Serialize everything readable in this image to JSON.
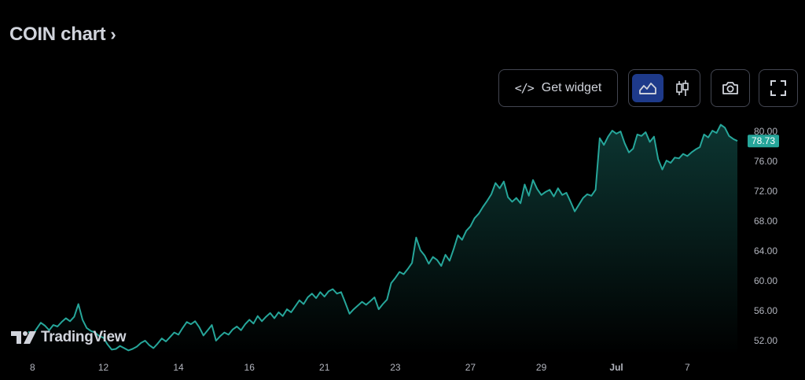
{
  "header": {
    "title": "COIN chart",
    "chevron": "›"
  },
  "toolbar": {
    "widget_code": "</>",
    "widget_label": "Get widget",
    "line_icon": "area-chart-icon",
    "candle_icon": "candlestick-icon",
    "camera_icon": "camera-icon",
    "fullscreen_icon": "fullscreen-icon"
  },
  "branding": {
    "logo_text": "TradingView"
  },
  "colors": {
    "line": "#26a69a",
    "price_tag": "#26a69a",
    "active_toggle": "#1e3a8a",
    "background": "#000000"
  },
  "chart_data": {
    "type": "area",
    "series": [
      {
        "values": [
          53.2,
          52.8,
          53.6,
          54.4,
          54.0,
          53.4,
          54.1,
          53.9,
          54.5,
          55.0,
          54.6,
          55.2,
          56.9,
          54.8,
          53.7,
          53.3,
          53.1,
          52.6,
          52.4,
          51.5,
          50.8,
          50.9,
          51.3,
          51.0,
          50.7,
          50.9,
          51.2,
          51.7,
          52.0,
          51.4,
          51.0,
          51.6,
          52.3,
          51.9,
          52.5,
          53.1,
          52.8,
          53.7,
          54.5,
          54.2,
          54.6,
          53.8,
          52.7,
          53.4,
          54.1,
          52.0,
          52.6,
          53.1,
          52.8,
          53.5,
          53.9,
          53.4,
          54.2,
          54.8,
          54.3,
          55.3,
          54.6,
          55.2,
          55.7,
          55.0,
          55.8,
          55.3,
          56.2,
          55.8,
          56.6,
          57.4,
          56.9,
          57.8,
          58.3,
          57.7,
          58.5,
          57.9,
          58.6,
          58.9,
          58.3,
          58.5,
          57.1,
          55.6,
          56.2,
          56.7,
          57.2,
          56.8,
          57.3,
          57.8,
          56.2,
          56.9,
          57.5,
          59.7,
          60.4,
          61.2,
          60.9,
          61.6,
          62.4,
          65.8,
          64.1,
          63.4,
          62.3,
          63.2,
          62.8,
          62.0,
          63.5,
          62.7,
          64.3,
          66.1,
          65.5,
          66.7,
          67.3,
          68.4,
          69.0,
          69.9,
          70.7,
          71.6,
          73.1,
          72.4,
          73.3,
          71.2,
          70.6,
          71.1,
          70.4,
          72.9,
          71.4,
          73.5,
          72.3,
          71.5,
          71.9,
          72.2,
          71.3,
          72.4,
          71.5,
          71.8,
          70.6,
          69.3,
          70.2,
          71.1,
          71.6,
          71.4,
          72.2,
          79.1,
          78.2,
          79.3,
          80.1,
          79.7,
          80.0,
          78.4,
          77.2,
          77.7,
          79.6,
          79.4,
          79.9,
          78.6,
          79.3,
          76.3,
          74.9,
          76.1,
          75.8,
          76.5,
          76.4,
          77.0,
          76.7,
          77.2,
          77.6,
          77.9,
          79.6,
          79.2,
          80.1,
          79.8,
          80.9,
          80.5,
          79.4,
          79.0,
          78.73
        ]
      }
    ],
    "x_ticks": [
      {
        "label": "8",
        "index": 1
      },
      {
        "label": "12",
        "index": 18
      },
      {
        "label": "14",
        "index": 36
      },
      {
        "label": "16",
        "index": 53
      },
      {
        "label": "21",
        "index": 71
      },
      {
        "label": "23",
        "index": 88
      },
      {
        "label": "27",
        "index": 106
      },
      {
        "label": "29",
        "index": 123
      },
      {
        "label": "Jul",
        "index": 141
      },
      {
        "label": "7",
        "index": 158
      }
    ],
    "y_ticks": [
      "52.00",
      "56.00",
      "60.00",
      "64.00",
      "68.00",
      "72.00",
      "76.00",
      "80.00"
    ],
    "ylim": [
      50.0,
      81.8
    ],
    "last_price": "78.73",
    "last_value": 78.73,
    "grid": false
  }
}
